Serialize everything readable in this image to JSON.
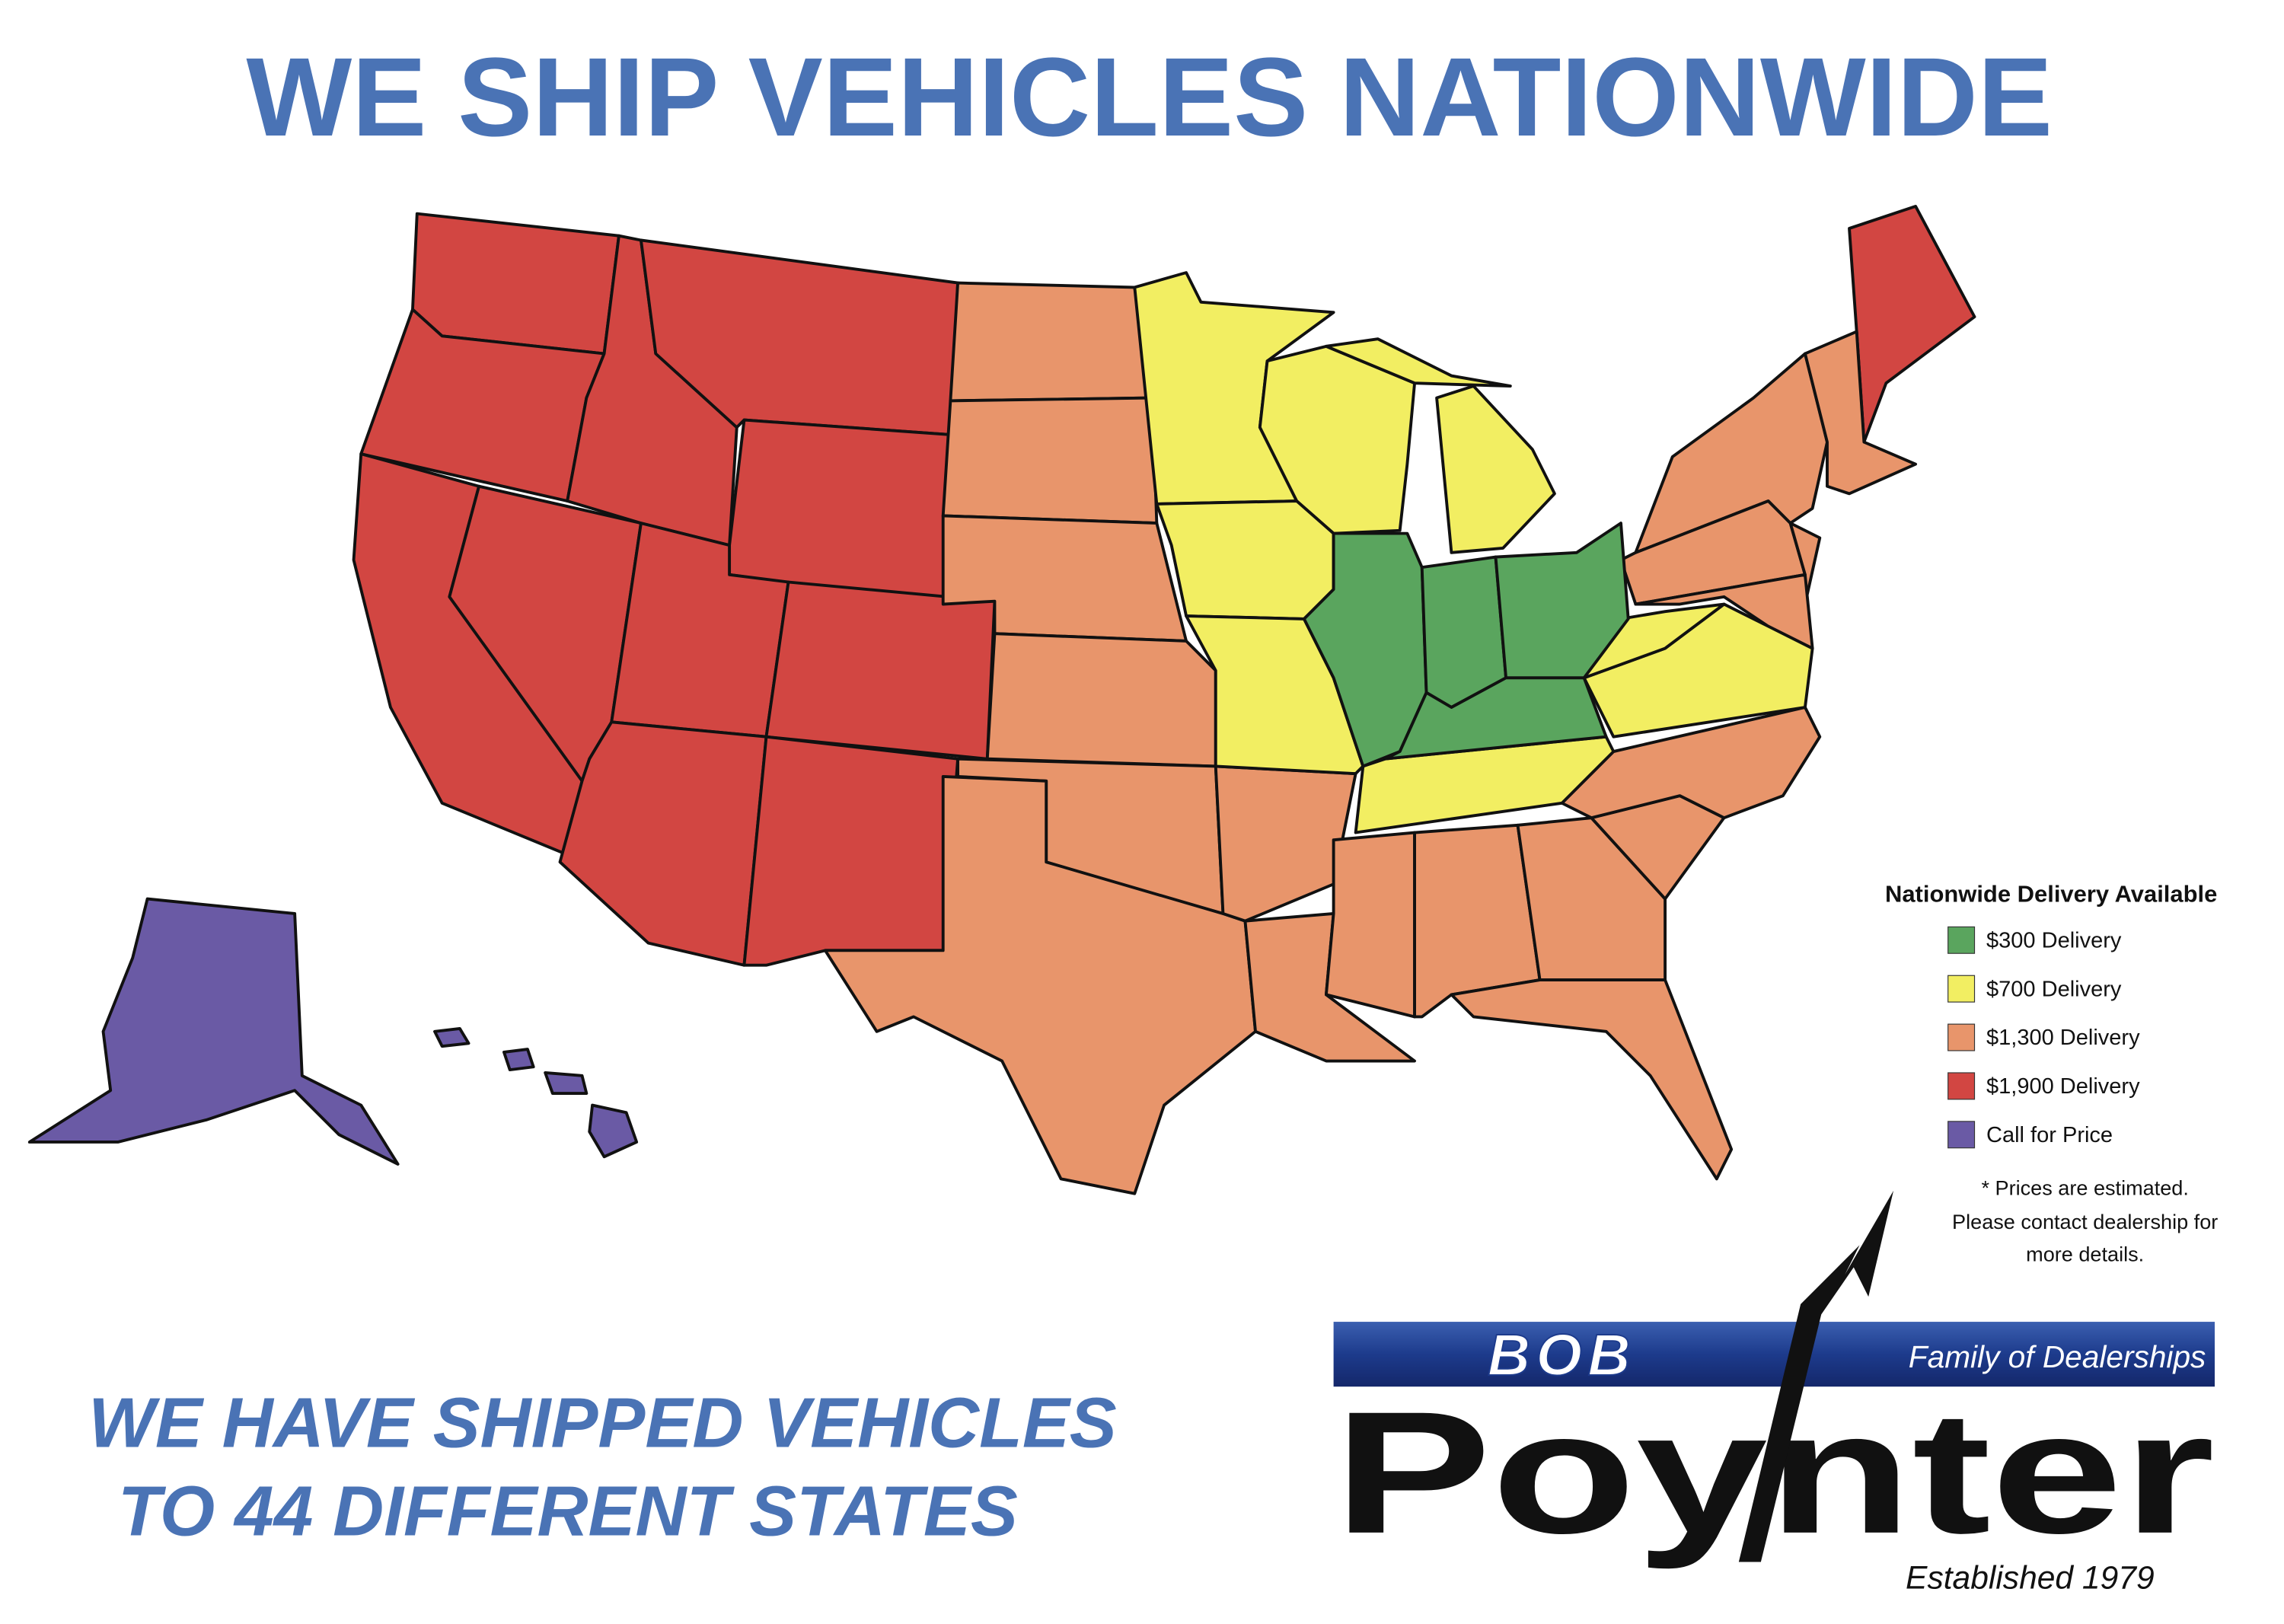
{
  "header": {
    "title": "WE SHIP VEHICLES NATIONWIDE"
  },
  "legend": {
    "title": "Nationwide Delivery Available",
    "items": [
      {
        "label": "$300 Delivery",
        "color": "#5aa55e"
      },
      {
        "label": "$700 Delivery",
        "color": "#f2ee62"
      },
      {
        "label": "$1,300 Delivery",
        "color": "#e8956b"
      },
      {
        "label": "$1,900 Delivery",
        "color": "#d24642"
      },
      {
        "label": "Call for Price",
        "color": "#6a5aa5"
      }
    ]
  },
  "note": [
    "* Prices are estimated.",
    "Please contact dealership for",
    "more details."
  ],
  "tagline": [
    "WE HAVE SHIPPED VEHICLES",
    "TO 44 DIFFERENT STATES"
  ],
  "logo": {
    "brand": "BOB",
    "slogan": "Family of Dealerships",
    "name": "Poynter",
    "established": "Established 1979"
  }
}
